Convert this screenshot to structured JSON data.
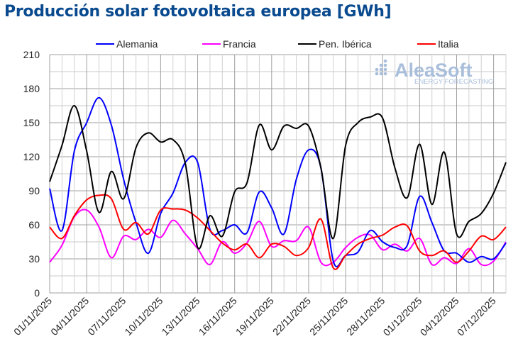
{
  "chart_data": {
    "type": "line",
    "title": "Producción solar fotovoltaica europea [GWh]",
    "xlabel": "",
    "ylabel": "",
    "ylim": [
      0,
      210
    ],
    "yticks": [
      0,
      30,
      60,
      90,
      120,
      150,
      180,
      210
    ],
    "x_start": "01/11/2025",
    "days": 38,
    "xtick_labels": [
      "01/11/2025",
      "04/11/2025",
      "07/11/2025",
      "10/11/2025",
      "13/11/2025",
      "16/11/2025",
      "19/11/2025",
      "22/11/2025",
      "25/11/2025",
      "28/11/2025",
      "01/12/2025",
      "04/12/2025",
      "07/12/2025"
    ],
    "legend_position": "top",
    "grid": true,
    "watermark": "AleaSoft ENERGY FORECASTING",
    "series": [
      {
        "name": "Alemania",
        "color": "#0000ff",
        "values": [
          92,
          55,
          125,
          150,
          172,
          148,
          100,
          62,
          35,
          70,
          88,
          115,
          115,
          56,
          55,
          60,
          53,
          89,
          75,
          52,
          100,
          126,
          110,
          28,
          33,
          36,
          55,
          45,
          40,
          42,
          85,
          62,
          37,
          35,
          27,
          32,
          30,
          44
        ]
      },
      {
        "name": "Francia",
        "color": "#ff00ff",
        "values": [
          27,
          42,
          67,
          73,
          58,
          31,
          50,
          47,
          56,
          49,
          64,
          52,
          39,
          25,
          45,
          35,
          44,
          63,
          41,
          46,
          46,
          58,
          27,
          27,
          40,
          49,
          51,
          38,
          43,
          37,
          48,
          25,
          31,
          26,
          39,
          25,
          28,
          45
        ]
      },
      {
        "name": "Pen. Ibérica",
        "color": "#000000",
        "values": [
          98,
          130,
          165,
          125,
          71,
          107,
          83,
          128,
          141,
          133,
          135,
          114,
          40,
          68,
          50,
          89,
          97,
          148,
          126,
          147,
          145,
          147,
          110,
          48,
          130,
          150,
          155,
          154,
          110,
          84,
          131,
          78,
          124,
          52,
          63,
          70,
          88,
          115
        ]
      },
      {
        "name": "Italia",
        "color": "#ff0000",
        "values": [
          58,
          48,
          68,
          82,
          86,
          83,
          56,
          62,
          52,
          73,
          74,
          73,
          66,
          55,
          44,
          38,
          43,
          31,
          43,
          41,
          33,
          40,
          65,
          22,
          33,
          43,
          48,
          51,
          58,
          59,
          37,
          33,
          37,
          27,
          37,
          50,
          47,
          58
        ]
      }
    ]
  }
}
